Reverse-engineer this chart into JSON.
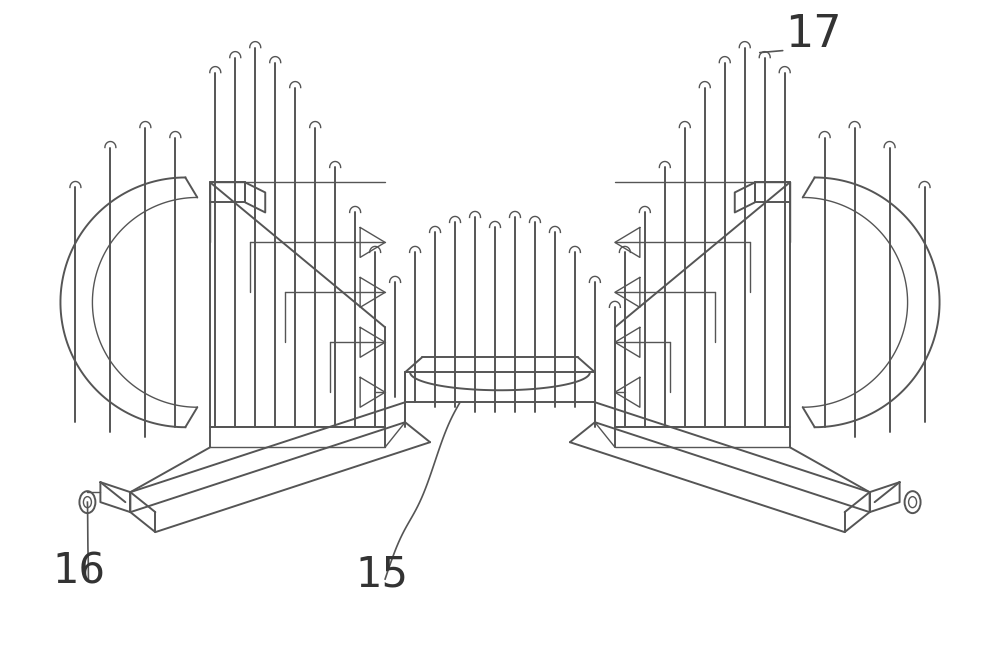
{
  "bg_color": "#ffffff",
  "line_color": "#555555",
  "line_width": 1.4,
  "label_16": "16",
  "label_15": "15",
  "label_17": "17",
  "fig_width": 10.0,
  "fig_height": 6.47,
  "dpi": 100
}
